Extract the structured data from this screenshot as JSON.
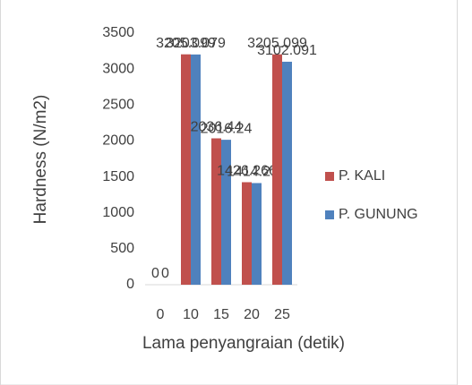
{
  "chart_data": {
    "type": "bar",
    "categories": [
      "0",
      "10",
      "15",
      "20",
      "25"
    ],
    "series": [
      {
        "name": "P. KALI",
        "color": "#c0504d",
        "values": [
          0,
          3205.099,
          2036.44,
          1426.266,
          3205.099
        ]
      },
      {
        "name": "P. GUNUNG",
        "color": "#4f81bd",
        "values": [
          0,
          3203.079,
          2016.24,
          1414.216,
          3102.091
        ]
      }
    ],
    "xlabel": "Lama penyangraian (detik)",
    "ylabel": "Hardness (N/m2)",
    "ylim": [
      0,
      3500
    ],
    "yticks": [
      0,
      500,
      1000,
      1500,
      2000,
      2500,
      3000,
      3500
    ],
    "grid": false,
    "legend": "right"
  }
}
